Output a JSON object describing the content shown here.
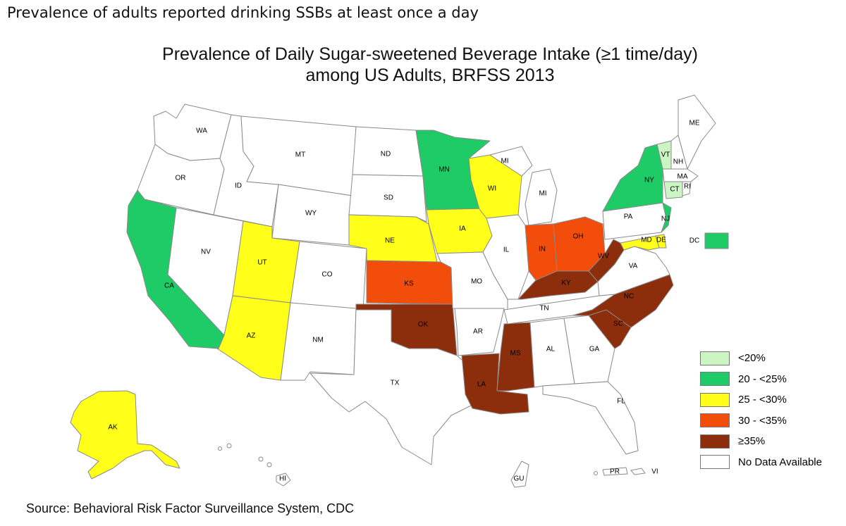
{
  "caption": "Prevalence of adults reported drinking SSBs at least once a day",
  "title_line1": "Prevalence of Daily Sugar-sweetened Beverage Intake (≥1 time/day)",
  "title_line2": "among US Adults, BRFSS 2013",
  "source": "Source: Behavioral Risk Factor Surveillance System, CDC",
  "colors": {
    "lt20": "#ccf5c4",
    "c20_25": "#1fcb67",
    "c25_30": "#ffff19",
    "c30_35": "#f24d0a",
    "ge35": "#8c2e0c",
    "none": "#ffffff"
  },
  "legend": [
    {
      "label": "<20%",
      "category": "lt20"
    },
    {
      "label": "20 - <25%",
      "category": "c20_25"
    },
    {
      "label": "25 - <30%",
      "category": "c25_30"
    },
    {
      "label": "30 - <35%",
      "category": "c30_35"
    },
    {
      "label": "≥35%",
      "category": "ge35"
    },
    {
      "label": "No Data Available",
      "category": "none"
    }
  ],
  "states": {
    "WA": {
      "label": "WA",
      "category": "none"
    },
    "OR": {
      "label": "OR",
      "category": "none"
    },
    "CA": {
      "label": "CA",
      "category": "c20_25"
    },
    "NV": {
      "label": "NV",
      "category": "none"
    },
    "ID": {
      "label": "ID",
      "category": "none"
    },
    "MT": {
      "label": "MT",
      "category": "none"
    },
    "WY": {
      "label": "WY",
      "category": "none"
    },
    "UT": {
      "label": "UT",
      "category": "c25_30"
    },
    "AZ": {
      "label": "AZ",
      "category": "c25_30"
    },
    "CO": {
      "label": "CO",
      "category": "none"
    },
    "NM": {
      "label": "NM",
      "category": "none"
    },
    "ND": {
      "label": "ND",
      "category": "none"
    },
    "SD": {
      "label": "SD",
      "category": "none"
    },
    "NE": {
      "label": "NE",
      "category": "c25_30"
    },
    "KS": {
      "label": "KS",
      "category": "c30_35"
    },
    "OK": {
      "label": "OK",
      "category": "ge35"
    },
    "TX": {
      "label": "TX",
      "category": "none"
    },
    "MN": {
      "label": "MN",
      "category": "c20_25"
    },
    "IA": {
      "label": "IA",
      "category": "c25_30"
    },
    "MO": {
      "label": "MO",
      "category": "none"
    },
    "AR": {
      "label": "AR",
      "category": "none"
    },
    "LA": {
      "label": "LA",
      "category": "ge35"
    },
    "WI": {
      "label": "WI",
      "category": "c25_30"
    },
    "IL": {
      "label": "IL",
      "category": "none"
    },
    "MS": {
      "label": "MS",
      "category": "ge35"
    },
    "MI": {
      "label": "MI",
      "category": "none"
    },
    "MI2": {
      "label": "MI",
      "category": "none"
    },
    "IN": {
      "label": "IN",
      "category": "c30_35"
    },
    "OH": {
      "label": "OH",
      "category": "c30_35"
    },
    "KY": {
      "label": "KY",
      "category": "ge35"
    },
    "TN": {
      "label": "TN",
      "category": "none"
    },
    "AL": {
      "label": "AL",
      "category": "none"
    },
    "GA": {
      "label": "GA",
      "category": "none"
    },
    "FL": {
      "label": "FL",
      "category": "none"
    },
    "SC": {
      "label": "SC",
      "category": "ge35"
    },
    "NC": {
      "label": "NC",
      "category": "ge35"
    },
    "VA": {
      "label": "VA",
      "category": "none"
    },
    "WV": {
      "label": "WV",
      "category": "ge35"
    },
    "PA": {
      "label": "PA",
      "category": "none"
    },
    "NY": {
      "label": "NY",
      "category": "c20_25"
    },
    "NJ": {
      "label": "NJ",
      "category": "c20_25"
    },
    "MD": {
      "label": "MD",
      "category": "c25_30"
    },
    "DE": {
      "label": "DE",
      "category": "c25_30"
    },
    "VT": {
      "label": "VT",
      "category": "lt20"
    },
    "NH": {
      "label": "NH",
      "category": "none"
    },
    "ME": {
      "label": "ME",
      "category": "none"
    },
    "MA": {
      "label": "MA",
      "category": "none"
    },
    "CT": {
      "label": "CT",
      "category": "lt20"
    },
    "RI": {
      "label": "RI",
      "category": "none"
    },
    "DC": {
      "label": "DC",
      "category": "c20_25"
    },
    "AK": {
      "label": "AK",
      "category": "c25_30"
    },
    "HI": {
      "label": "HI",
      "category": "none"
    },
    "GU": {
      "label": "GU",
      "category": "none"
    },
    "PR": {
      "label": "PR",
      "category": "none"
    },
    "VI": {
      "label": "VI",
      "category": "none"
    }
  }
}
